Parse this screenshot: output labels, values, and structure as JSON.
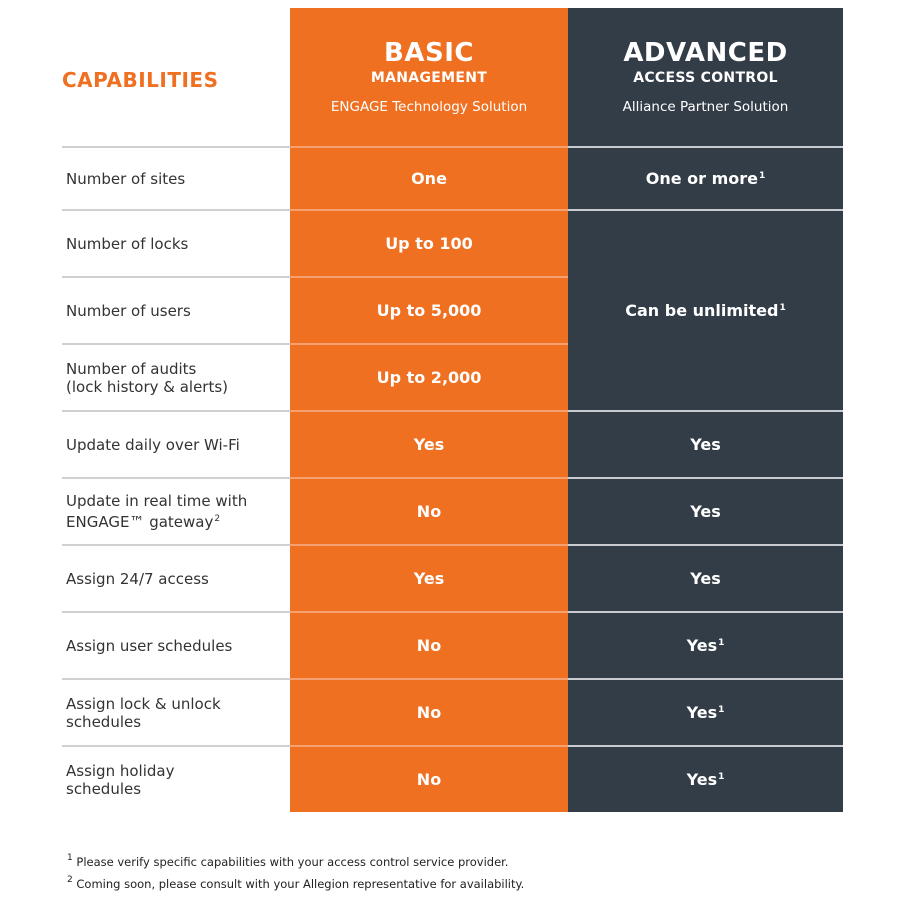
{
  "header": {
    "capabilities": "CAPABILITIES",
    "basic": {
      "title": "BASIC",
      "subtitle": "MANAGEMENT",
      "solution": "ENGAGE Technology Solution"
    },
    "advanced": {
      "title": "ADVANCED",
      "subtitle": "ACCESS CONTROL",
      "solution": "Alliance Partner Solution"
    }
  },
  "rows": [
    {
      "label": "Number of sites",
      "label_sup": "",
      "basic": "One",
      "advanced": "One or more",
      "advanced_sup": "1"
    },
    {
      "label": "Number of locks",
      "label_sup": "",
      "basic": "Up to 100",
      "advanced": "Can be unlimited",
      "advanced_sup": "1"
    },
    {
      "label": "Number of users",
      "label_sup": "",
      "basic": "Up to 5,000"
    },
    {
      "label": "Number of audits\n(lock history & alerts)",
      "label_sup": "",
      "basic": "Up to 2,000"
    },
    {
      "label": "Update daily over Wi-Fi",
      "label_sup": "",
      "basic": "Yes",
      "advanced": "Yes",
      "advanced_sup": ""
    },
    {
      "label": "Update in real time with\nENGAGE™ gateway",
      "label_sup": "2",
      "basic": "No",
      "advanced": "Yes",
      "advanced_sup": ""
    },
    {
      "label": "Assign 24/7 access",
      "label_sup": "",
      "basic": "Yes",
      "advanced": "Yes",
      "advanced_sup": ""
    },
    {
      "label": "Assign user schedules",
      "label_sup": "",
      "basic": "No",
      "advanced": "Yes",
      "advanced_sup": "1"
    },
    {
      "label": "Assign lock & unlock\nschedules",
      "label_sup": "",
      "basic": "No",
      "advanced": "Yes",
      "advanced_sup": "1"
    },
    {
      "label": "Assign holiday\nschedules",
      "label_sup": "",
      "basic": "No",
      "advanced": "Yes",
      "advanced_sup": "1"
    }
  ],
  "footnotes": [
    {
      "mark": "1",
      "text": "Please verify specific capabilities with your access control service provider."
    },
    {
      "mark": "2",
      "text": "Coming soon, please consult with your Allegion representative for availability."
    }
  ],
  "colors": {
    "orange": "#f07022",
    "dark": "#333d47"
  }
}
